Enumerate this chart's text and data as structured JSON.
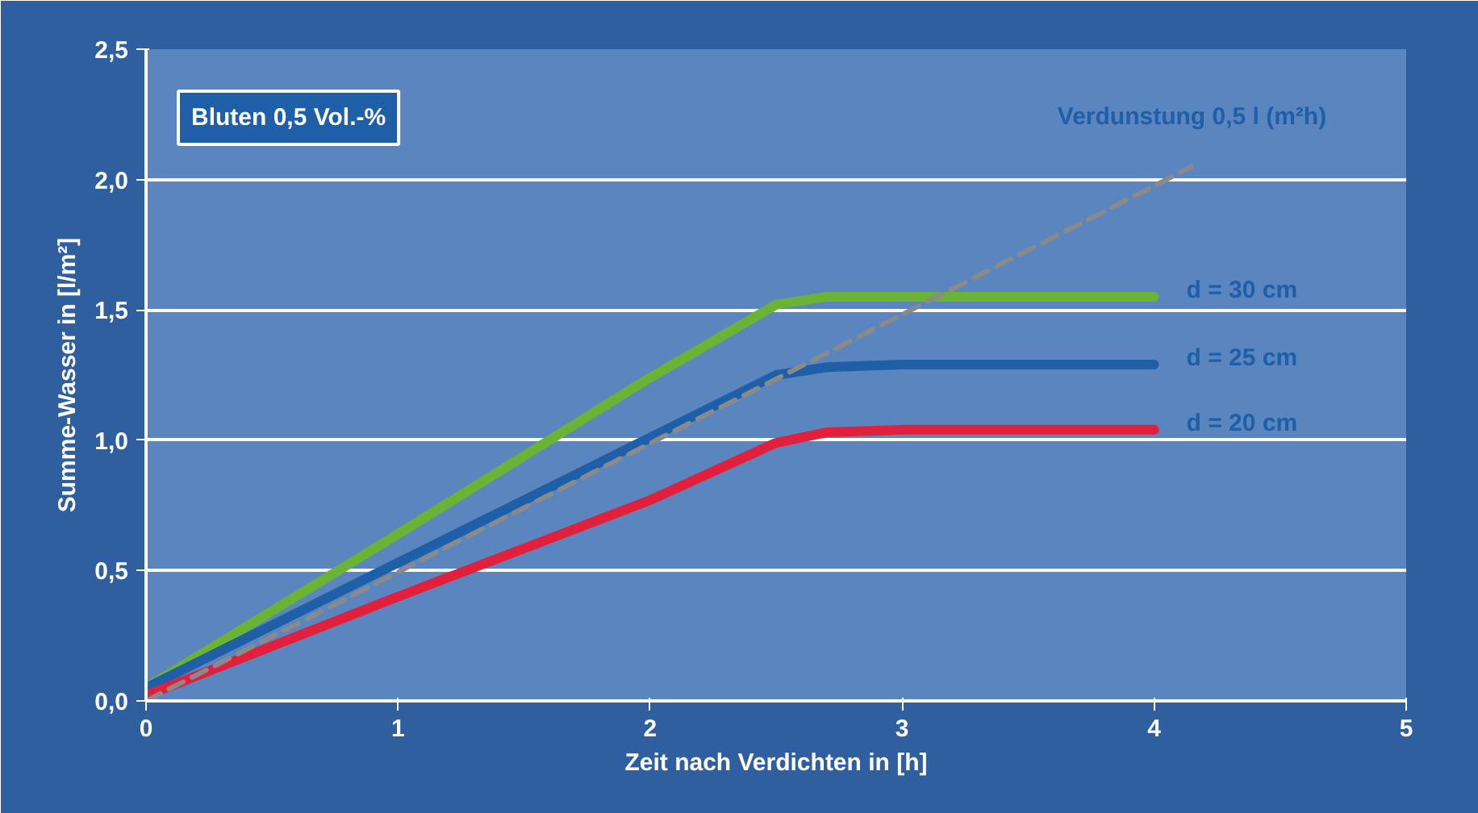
{
  "chart_data": {
    "type": "line",
    "xlabel": "Zeit nach Verdichten in [h]",
    "ylabel": "Summe-Wasser in [l/m²]",
    "xlim": [
      0,
      5
    ],
    "ylim": [
      0,
      2.5
    ],
    "xticks": [
      0,
      1,
      2,
      3,
      4,
      5
    ],
    "yticks": [
      {
        "value": 0,
        "label": "0,0"
      },
      {
        "value": 0.5,
        "label": "0,5"
      },
      {
        "value": 1,
        "label": "1,0"
      },
      {
        "value": 1.5,
        "label": "1,5"
      },
      {
        "value": 2,
        "label": "2,0"
      },
      {
        "value": 2.5,
        "label": "2,5"
      }
    ],
    "grid": "y",
    "marker": "none",
    "series": [
      {
        "name": "d = 30 cm",
        "color": "#6ab335",
        "x": [
          0,
          1,
          2,
          2.5,
          2.7,
          3,
          4
        ],
        "values": [
          0.05,
          0.64,
          1.24,
          1.52,
          1.55,
          1.55,
          1.55
        ]
      },
      {
        "name": "d = 25 cm",
        "color": "#1e5fa8",
        "x": [
          0,
          1,
          2,
          2.5,
          2.7,
          3,
          4
        ],
        "values": [
          0.05,
          0.53,
          1.01,
          1.25,
          1.28,
          1.29,
          1.29
        ]
      },
      {
        "name": "d = 20 cm",
        "color": "#e3203c",
        "x": [
          0,
          1,
          2,
          2.5,
          2.7,
          3,
          4
        ],
        "values": [
          0.02,
          0.4,
          0.77,
          0.99,
          1.03,
          1.04,
          1.04
        ]
      },
      {
        "color": "#8a8a8a",
        "line_style": "dashed",
        "x": [
          0,
          4.15
        ],
        "values": [
          0,
          2.05
        ]
      }
    ],
    "annotations": [
      "Bluten 0,5 Vol.-%",
      {
        "text": "Verdunstung 0,5 l (m²h)",
        "x": 4.15,
        "y": 2.05
      }
    ]
  }
}
